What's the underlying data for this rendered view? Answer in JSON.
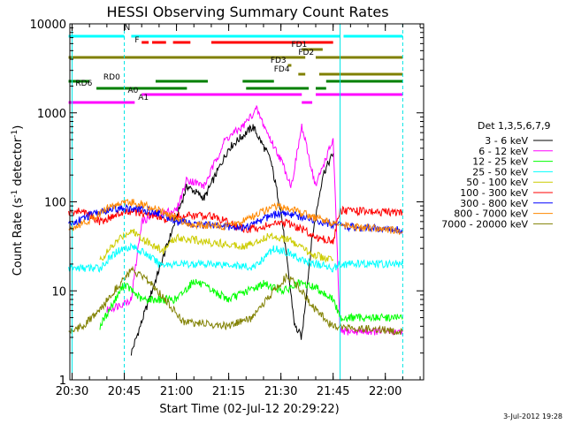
{
  "chart_data": {
    "type": "line",
    "title": "HESSI Observing Summary Count Rates",
    "xlabel": "Start Time (02-Jul-12 20:29:22)",
    "ylabel": "Count Rate (s⁻¹ detector⁻¹)",
    "ylabel_parts": {
      "prefix": "Count Rate (s",
      "exp1": "-1",
      "mid": " detector",
      "exp2": "-1",
      "suffix": ")"
    },
    "y_scale": "log",
    "xlim": [
      "20:29:22",
      "22:11:00"
    ],
    "ylim": [
      1,
      10000
    ],
    "x_ticks": [
      "20:30",
      "20:45",
      "21:00",
      "21:15",
      "21:30",
      "21:45",
      "22:00"
    ],
    "y_ticks": [
      "1",
      "10",
      "100",
      "1000",
      "10000"
    ],
    "legend_title": "Det 1,3,5,6,7,9",
    "legend_position": "right",
    "timestamp": "3-Jul-2012 19:28",
    "series": [
      {
        "name": "3 - 6 keV",
        "color": "#000000",
        "points": [
          [
            "20:47",
            2
          ],
          [
            "21:03",
            150
          ],
          [
            "21:08",
            110
          ],
          [
            "21:15",
            400
          ],
          [
            "21:22",
            700
          ],
          [
            "21:27",
            300
          ],
          [
            "21:30",
            80
          ],
          [
            "21:34",
            4
          ],
          [
            "21:36",
            3
          ],
          [
            "21:39",
            40
          ],
          [
            "21:42",
            200
          ],
          [
            "21:45",
            350
          ]
        ]
      },
      {
        "name": "6 - 12 keV",
        "color": "#ff00ff",
        "points": [
          [
            "20:40",
            6
          ],
          [
            "20:47",
            8
          ],
          [
            "20:50",
            60
          ],
          [
            "20:55",
            75
          ],
          [
            "21:00",
            80
          ],
          [
            "21:03",
            180
          ],
          [
            "21:08",
            150
          ],
          [
            "21:14",
            500
          ],
          [
            "21:19",
            700
          ],
          [
            "21:23",
            1100
          ],
          [
            "21:27",
            500
          ],
          [
            "21:30",
            300
          ],
          [
            "21:33",
            150
          ],
          [
            "21:36",
            700
          ],
          [
            "21:40",
            150
          ],
          [
            "21:42",
            250
          ],
          [
            "21:45",
            500
          ],
          [
            "21:47",
            3.5
          ],
          [
            "22:05",
            3.5
          ]
        ]
      },
      {
        "name": "12 - 25 keV",
        "color": "#00ff00",
        "points": [
          [
            "20:38",
            4
          ],
          [
            "20:45",
            12
          ],
          [
            "20:50",
            8
          ],
          [
            "21:00",
            8
          ],
          [
            "21:05",
            13
          ],
          [
            "21:15",
            8
          ],
          [
            "21:25",
            12
          ],
          [
            "21:31",
            10
          ],
          [
            "21:35",
            12
          ],
          [
            "21:40",
            11
          ],
          [
            "21:45",
            8
          ],
          [
            "21:47",
            5
          ],
          [
            "22:05",
            5
          ]
        ]
      },
      {
        "name": "25 - 50 keV",
        "color": "#00ffff",
        "points": [
          [
            "20:29",
            18
          ],
          [
            "20:35",
            18
          ],
          [
            "20:38",
            18
          ],
          [
            "20:43",
            28
          ],
          [
            "20:47",
            32
          ],
          [
            "20:52",
            25
          ],
          [
            "20:55",
            20
          ],
          [
            "21:00",
            20
          ],
          [
            "21:05",
            20
          ],
          [
            "21:15",
            20
          ],
          [
            "21:22",
            18
          ],
          [
            "21:28",
            30
          ],
          [
            "21:32",
            27
          ],
          [
            "21:36",
            22
          ],
          [
            "21:40",
            20
          ],
          [
            "21:45",
            18
          ],
          [
            "21:47",
            20
          ],
          [
            "22:05",
            20
          ]
        ]
      },
      {
        "name": "50 - 100 keV",
        "color": "#cccc00",
        "points": [
          [
            "20:38",
            22
          ],
          [
            "20:44",
            40
          ],
          [
            "20:47",
            48
          ],
          [
            "20:52",
            35
          ],
          [
            "20:56",
            28
          ],
          [
            "21:00",
            40
          ],
          [
            "21:10",
            35
          ],
          [
            "21:20",
            32
          ],
          [
            "21:27",
            42
          ],
          [
            "21:32",
            38
          ],
          [
            "21:36",
            30
          ],
          [
            "21:40",
            25
          ],
          [
            "21:45",
            22
          ]
        ]
      },
      {
        "name": "100 - 300 keV",
        "color": "#ff0000",
        "points": [
          [
            "20:29",
            75
          ],
          [
            "20:33",
            80
          ],
          [
            "20:38",
            60
          ],
          [
            "20:43",
            72
          ],
          [
            "20:47",
            78
          ],
          [
            "20:53",
            70
          ],
          [
            "20:57",
            62
          ],
          [
            "21:00",
            70
          ],
          [
            "21:10",
            70
          ],
          [
            "21:20",
            48
          ],
          [
            "21:27",
            55
          ],
          [
            "21:31",
            58
          ],
          [
            "21:36",
            50
          ],
          [
            "21:40",
            40
          ],
          [
            "21:45",
            36
          ],
          [
            "21:47",
            80
          ],
          [
            "22:05",
            75
          ]
        ]
      },
      {
        "name": "300 - 800 keV",
        "color": "#0000ff",
        "points": [
          [
            "20:29",
            55
          ],
          [
            "20:35",
            70
          ],
          [
            "20:40",
            80
          ],
          [
            "20:45",
            85
          ],
          [
            "20:50",
            82
          ],
          [
            "20:55",
            75
          ],
          [
            "21:00",
            60
          ],
          [
            "21:10",
            54
          ],
          [
            "21:20",
            52
          ],
          [
            "21:25",
            65
          ],
          [
            "21:30",
            75
          ],
          [
            "21:33",
            72
          ],
          [
            "21:36",
            68
          ],
          [
            "21:40",
            62
          ],
          [
            "21:45",
            55
          ],
          [
            "21:50",
            52
          ],
          [
            "22:05",
            48
          ]
        ]
      },
      {
        "name": "800 - 7000 keV",
        "color": "#ff8800",
        "points": [
          [
            "20:29",
            50
          ],
          [
            "20:35",
            62
          ],
          [
            "20:40",
            85
          ],
          [
            "20:45",
            100
          ],
          [
            "20:50",
            95
          ],
          [
            "20:55",
            80
          ],
          [
            "21:00",
            65
          ],
          [
            "21:05",
            55
          ],
          [
            "21:15",
            53
          ],
          [
            "21:22",
            68
          ],
          [
            "21:28",
            90
          ],
          [
            "21:32",
            85
          ],
          [
            "21:36",
            75
          ],
          [
            "21:40",
            65
          ],
          [
            "21:45",
            58
          ],
          [
            "21:50",
            52
          ],
          [
            "22:05",
            47
          ]
        ]
      },
      {
        "name": "7000 - 20000 keV",
        "color": "#808000",
        "points": [
          [
            "20:29",
            3.5
          ],
          [
            "20:33",
            4
          ],
          [
            "20:38",
            6
          ],
          [
            "20:42",
            10
          ],
          [
            "20:47",
            17
          ],
          [
            "20:53",
            12
          ],
          [
            "20:58",
            7
          ],
          [
            "21:02",
            4.5
          ],
          [
            "21:15",
            4
          ],
          [
            "21:22",
            5
          ],
          [
            "21:28",
            10
          ],
          [
            "21:32",
            15
          ],
          [
            "21:36",
            10
          ],
          [
            "21:40",
            6
          ],
          [
            "21:45",
            4
          ],
          [
            "22:05",
            3.5
          ]
        ]
      }
    ],
    "flags": [
      {
        "name": "N",
        "color": "#00ffff",
        "label_at": "20:45",
        "segments": [
          [
            "20:29",
            "20:45"
          ],
          [
            "20:47",
            "21:47"
          ],
          [
            "21:48",
            "22:05"
          ]
        ]
      },
      {
        "name": "F",
        "color": "#ff0000",
        "label_at": "20:48",
        "segments": [
          [
            "20:50",
            "20:52"
          ],
          [
            "20:53",
            "20:57"
          ],
          [
            "20:59",
            "21:04"
          ],
          [
            "21:10",
            "21:45"
          ]
        ]
      },
      {
        "name": "FD1",
        "color": "#808000",
        "label_at": "21:33",
        "segments": [
          [
            "21:36",
            "21:42"
          ]
        ]
      },
      {
        "name": "FD2",
        "color": "#808000",
        "label_at": "21:35",
        "segments": [
          [
            "20:29",
            "21:37"
          ],
          [
            "21:40",
            "22:05"
          ]
        ]
      },
      {
        "name": "FD3",
        "color": "#808000",
        "label_at": "21:27",
        "segments": [
          [
            "21:32",
            "21:33"
          ]
        ]
      },
      {
        "name": "FD4",
        "color": "#808000",
        "label_at": "21:28",
        "segments": [
          [
            "21:35",
            "21:37"
          ],
          [
            "21:41",
            "22:05"
          ]
        ]
      },
      {
        "name": "RD0",
        "color": "#008000",
        "label_at": "20:39",
        "segments": [
          [
            "20:29",
            "20:35"
          ],
          [
            "20:54",
            "21:09"
          ],
          [
            "21:19",
            "21:28"
          ],
          [
            "21:43",
            "22:05"
          ]
        ]
      },
      {
        "name": "RD6",
        "color": "#008000",
        "label_at": "20:31",
        "segments": [
          [
            "20:37",
            "21:03"
          ],
          [
            "21:20",
            "21:38"
          ],
          [
            "21:40",
            "21:43"
          ]
        ]
      },
      {
        "name": "A0",
        "color": "#ff00ff",
        "label_at": "20:46",
        "segments": [
          [
            "20:50",
            "21:36"
          ],
          [
            "21:40",
            "22:05"
          ]
        ]
      },
      {
        "name": "A1",
        "color": "#ff00ff",
        "label_at": "20:49",
        "segments": [
          [
            "20:29",
            "20:48"
          ],
          [
            "21:36",
            "21:39"
          ]
        ]
      }
    ],
    "dashed_markers": [
      "20:45",
      "22:05"
    ],
    "solid_markers": [
      "20:30",
      "21:47"
    ]
  }
}
